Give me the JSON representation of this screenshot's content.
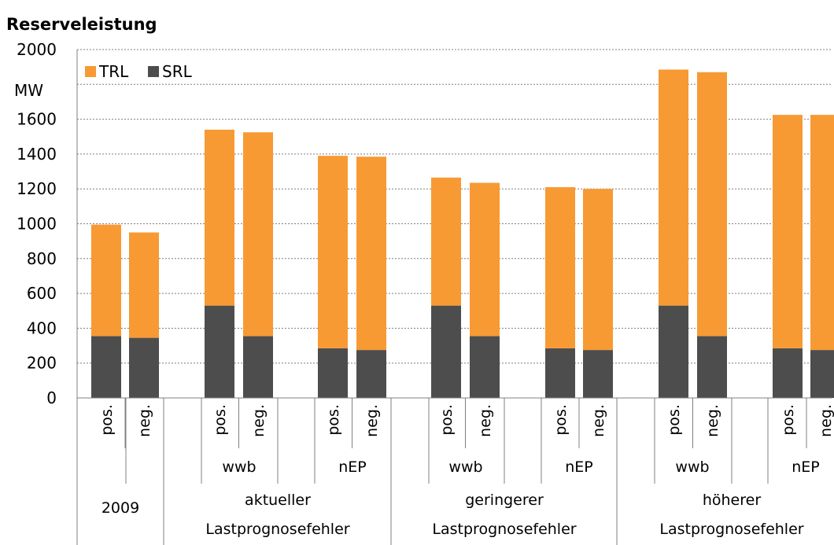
{
  "chart_data": {
    "type": "bar",
    "stacked": true,
    "title": "Reserveleistung",
    "ylabel": "MW",
    "ylim": [
      0,
      2000
    ],
    "yticks": [
      0,
      200,
      400,
      600,
      800,
      1000,
      1200,
      1400,
      1600,
      2000
    ],
    "grid": true,
    "legend_position": "top-left",
    "colors": {
      "TRL": "#f79a34",
      "SRL": "#4d4d4d"
    },
    "series": [
      {
        "name": "SRL",
        "color": "#4d4d4d",
        "values": [
          355,
          345,
          530,
          355,
          285,
          275,
          530,
          355,
          285,
          275,
          530,
          355,
          285,
          275
        ]
      },
      {
        "name": "TRL",
        "color": "#f79a34",
        "values": [
          640,
          605,
          1010,
          1170,
          1105,
          1110,
          735,
          880,
          925,
          925,
          1355,
          1515,
          1340,
          1350
        ]
      }
    ],
    "categories": [
      "pos.",
      "neg.",
      "pos.",
      "neg.",
      "pos.",
      "neg.",
      "pos.",
      "neg.",
      "pos.",
      "neg.",
      "pos.",
      "neg.",
      "pos.",
      "neg."
    ],
    "level2": [
      "wwb",
      "nEP",
      "wwb",
      "nEP",
      "wwb",
      "nEP"
    ],
    "level3": [
      "2009",
      "aktueller Lastprognosefehler",
      "geringerer Lastprognosefehler",
      "höherer Lastprognosefehler"
    ]
  }
}
